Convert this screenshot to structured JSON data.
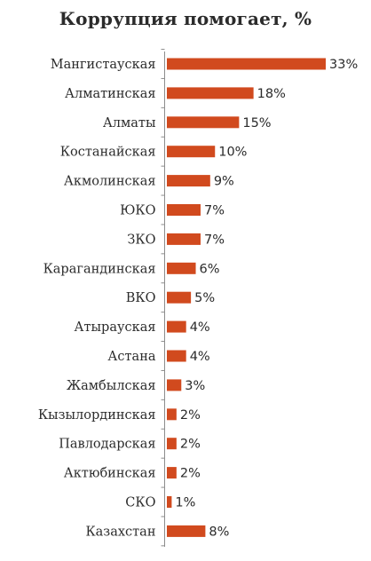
{
  "chart_data": {
    "type": "bar",
    "orientation": "horizontal",
    "title": "Коррупция помогает, %",
    "xlabel": "",
    "ylabel": "",
    "xlim": [
      0,
      33
    ],
    "grid": false,
    "legend": "none",
    "bar_color": "#d14a1e",
    "axis_color": "#8c8c8c",
    "value_suffix": "%",
    "categories": [
      "Мангистауская",
      "Алматинская",
      "Алматы",
      "Костанайская",
      "Акмолинская",
      "ЮКО",
      "ЗКО",
      "Карагандинская",
      "ВКО",
      "Атырауская",
      "Астана",
      "Жамбылская",
      "Кызылординская",
      "Павлодарская",
      "Актюбинская",
      "СКО",
      "Казахстан"
    ],
    "values": [
      33,
      18,
      15,
      10,
      9,
      7,
      7,
      6,
      5,
      4,
      4,
      3,
      2,
      2,
      2,
      1,
      8
    ],
    "data_labels": [
      "33%",
      "18%",
      "15%",
      "10%",
      "9%",
      "7%",
      "7%",
      "6%",
      "5%",
      "4%",
      "4%",
      "3%",
      "2%",
      "2%",
      "2%",
      "1%",
      "8%"
    ]
  }
}
